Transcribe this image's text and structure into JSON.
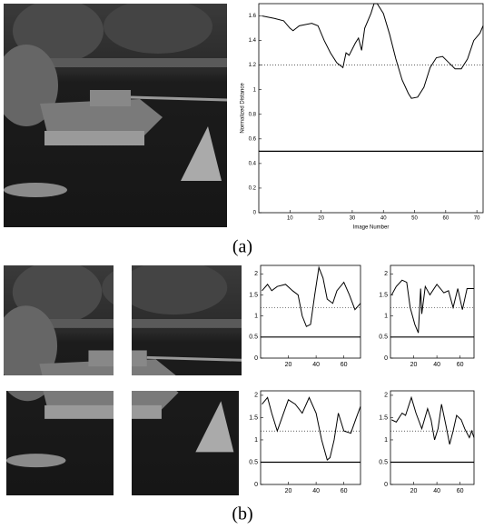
{
  "captions": [
    "(a)",
    "(b)"
  ],
  "chart_data": [
    {
      "type": "line",
      "x_label": "Image Number",
      "y_label": "Normalized Distance",
      "x": [
        1,
        5,
        8,
        10,
        11,
        13,
        17,
        19,
        21,
        23,
        25,
        27,
        28,
        29,
        31,
        32,
        33,
        34,
        36,
        37,
        38,
        40,
        42,
        44,
        46,
        48,
        49,
        51,
        53,
        55,
        57,
        59,
        61,
        63,
        65,
        67,
        69,
        71,
        72
      ],
      "series": [
        {
          "color": "#000000",
          "values": [
            1.6,
            1.58,
            1.56,
            1.5,
            1.48,
            1.52,
            1.54,
            1.52,
            1.4,
            1.3,
            1.22,
            1.18,
            1.3,
            1.28,
            1.38,
            1.42,
            1.32,
            1.5,
            1.62,
            1.7,
            1.7,
            1.62,
            1.45,
            1.25,
            1.08,
            0.97,
            0.93,
            0.94,
            1.02,
            1.18,
            1.26,
            1.27,
            1.22,
            1.17,
            1.17,
            1.25,
            1.4,
            1.46,
            1.52
          ]
        }
      ],
      "reference_lines": [
        {
          "value": 1.2,
          "style": "dotted"
        },
        {
          "value": 0.5,
          "style": "solid"
        }
      ],
      "xlim": [
        0,
        72
      ],
      "ylim": [
        0,
        1.7
      ],
      "xticks": [
        10,
        20,
        30,
        40,
        50,
        60,
        70
      ],
      "yticks": [
        0,
        0.2,
        0.4,
        0.6,
        0.8,
        1,
        1.2,
        1.4,
        1.6
      ]
    },
    {
      "type": "line",
      "x": [
        1,
        5,
        8,
        12,
        18,
        23,
        27,
        30,
        33,
        36,
        39,
        42,
        45,
        48,
        52,
        55,
        60,
        64,
        68,
        72
      ],
      "series": [
        {
          "color": "#000000",
          "values": [
            1.6,
            1.75,
            1.6,
            1.7,
            1.75,
            1.6,
            1.5,
            1.0,
            0.75,
            0.8,
            1.5,
            2.15,
            1.9,
            1.4,
            1.3,
            1.6,
            1.8,
            1.5,
            1.15,
            1.3
          ]
        }
      ],
      "reference_lines": [
        {
          "value": 1.2,
          "style": "dotted"
        },
        {
          "value": 0.5,
          "style": "solid"
        }
      ],
      "xlim": [
        0,
        72
      ],
      "ylim": [
        0,
        2.2
      ],
      "xticks": [
        20,
        40,
        60
      ],
      "yticks": [
        0,
        0.5,
        1,
        1.5,
        2
      ]
    },
    {
      "type": "line",
      "x": [
        1,
        5,
        10,
        14,
        17,
        21,
        24,
        26,
        27,
        30,
        34,
        40,
        46,
        50,
        54,
        58,
        62,
        66,
        72
      ],
      "series": [
        {
          "color": "#000000",
          "values": [
            1.5,
            1.7,
            1.85,
            1.8,
            1.2,
            0.8,
            0.6,
            1.65,
            1.05,
            1.7,
            1.5,
            1.75,
            1.55,
            1.6,
            1.2,
            1.65,
            1.15,
            1.65,
            1.65
          ]
        }
      ],
      "reference_lines": [
        {
          "value": 1.2,
          "style": "dotted"
        },
        {
          "value": 0.5,
          "style": "solid"
        }
      ],
      "xlim": [
        0,
        72
      ],
      "ylim": [
        0,
        2.2
      ],
      "xticks": [
        20,
        40,
        60
      ],
      "yticks": [
        0,
        0.5,
        1,
        1.5,
        2
      ]
    },
    {
      "type": "line",
      "x": [
        1,
        5,
        8,
        12,
        16,
        20,
        25,
        30,
        35,
        40,
        44,
        48,
        50,
        53,
        56,
        60,
        65,
        69,
        72
      ],
      "series": [
        {
          "color": "#000000",
          "values": [
            1.8,
            1.95,
            1.6,
            1.2,
            1.55,
            1.9,
            1.8,
            1.6,
            1.95,
            1.6,
            1.0,
            0.55,
            0.6,
            1.0,
            1.6,
            1.2,
            1.15,
            1.5,
            1.75
          ]
        }
      ],
      "reference_lines": [
        {
          "value": 1.2,
          "style": "dotted"
        },
        {
          "value": 0.5,
          "style": "solid"
        }
      ],
      "xlim": [
        0,
        72
      ],
      "ylim": [
        0,
        2.1
      ],
      "xticks": [
        20,
        40,
        60
      ],
      "yticks": [
        0,
        0.5,
        1,
        1.5,
        2
      ]
    },
    {
      "type": "line",
      "x": [
        1,
        5,
        10,
        13,
        18,
        22,
        27,
        32,
        35,
        38,
        41,
        44,
        48,
        51,
        54,
        57,
        61,
        64,
        68,
        70,
        72
      ],
      "series": [
        {
          "color": "#000000",
          "values": [
            1.45,
            1.4,
            1.6,
            1.55,
            1.95,
            1.6,
            1.25,
            1.7,
            1.45,
            1.0,
            1.25,
            1.8,
            1.3,
            0.9,
            1.2,
            1.55,
            1.45,
            1.25,
            1.05,
            1.2,
            1.05
          ]
        }
      ],
      "reference_lines": [
        {
          "value": 1.2,
          "style": "dotted"
        },
        {
          "value": 0.5,
          "style": "solid"
        }
      ],
      "xlim": [
        0,
        72
      ],
      "ylim": [
        0,
        2.1
      ],
      "xticks": [
        20,
        40,
        60
      ],
      "yticks": [
        0,
        0.5,
        1,
        1.5,
        2
      ]
    }
  ]
}
